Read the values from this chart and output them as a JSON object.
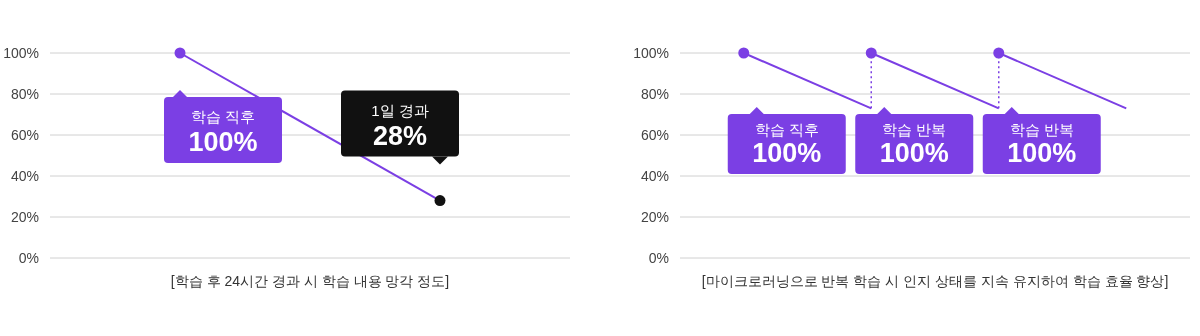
{
  "chart_data": [
    {
      "type": "line",
      "xlabel": "[학습 후 24시간 경과 시 학습 내용 망각 정도]",
      "categories": [
        null,
        null
      ],
      "ylim": [
        0,
        100
      ],
      "yticks": [
        {
          "value": 0,
          "label": "0%"
        },
        {
          "value": 20,
          "label": "20%"
        },
        {
          "value": 40,
          "label": "40%"
        },
        {
          "value": 60,
          "label": "60%"
        },
        {
          "value": 80,
          "label": "80%"
        },
        {
          "value": 100,
          "label": "100%"
        }
      ],
      "tick_labels": "y",
      "grid": "y",
      "marker": "circle",
      "series": [
        {
          "color": "#7b3fe4",
          "colors": [
            "#7b3fe4",
            "#111111"
          ],
          "values": [
            100,
            28
          ],
          "value_labels": [
            "100%",
            "28%"
          ]
        }
      ],
      "annotations": [
        "학습 직후",
        "1일 경과"
      ]
    },
    {
      "type": "line",
      "xlabel": "[마이크로러닝으로 반복 학습 시 인지 상태를 지속 유지하여 학습 효율 향상]",
      "categories": [
        null,
        null,
        null,
        null
      ],
      "ylim": [
        0,
        100
      ],
      "yticks": [
        {
          "value": 0,
          "label": "0%"
        },
        {
          "value": 20,
          "label": "20%"
        },
        {
          "value": 40,
          "label": "40%"
        },
        {
          "value": 60,
          "label": "60%"
        },
        {
          "value": 80,
          "label": "80%"
        },
        {
          "value": 100,
          "label": "100%"
        }
      ],
      "tick_labels": "y",
      "grid": "y",
      "marker": "circle",
      "series": [
        {
          "color": "#7b3fe4",
          "values": [
            100,
            73,
            null,
            null
          ],
          "value_labels": [
            "100%",
            null,
            null,
            null
          ]
        },
        {
          "color": "#7b3fe4",
          "values": [
            null,
            100,
            73,
            null
          ],
          "value_labels": [
            null,
            "100%",
            null,
            null
          ]
        },
        {
          "color": "#7b3fe4",
          "values": [
            null,
            null,
            100,
            73
          ],
          "value_labels": [
            null,
            null,
            "100%",
            null
          ]
        }
      ],
      "annotations": [
        "학습 직후",
        "학습 반복",
        "학습 반복"
      ]
    }
  ]
}
